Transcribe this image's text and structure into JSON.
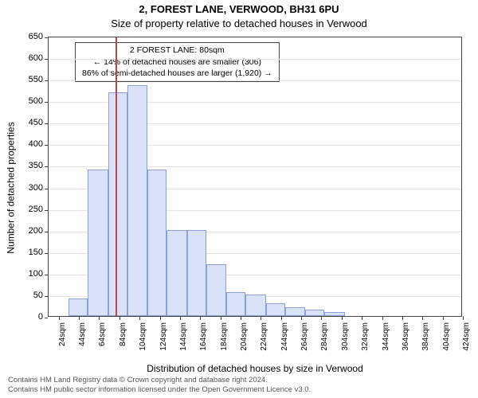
{
  "title": "2, FOREST LANE, VERWOOD, BH31 6PU",
  "subtitle": "Size of property relative to detached houses in Verwood",
  "ylabel": "Number of detached properties",
  "xlabel": "Distribution of detached houses by size in Verwood",
  "footer_line1": "Contains HM Land Registry data © Crown copyright and database right 2024.",
  "footer_line2": "Contains HM public sector information licensed under the Open Government Licence v3.0.",
  "annotation": {
    "l1": "2 FOREST LANE: 80sqm",
    "l2": "← 14% of detached houses are smaller (306)",
    "l3": "86% of semi-detached houses are larger (1,920) →"
  },
  "chart": {
    "type": "histogram",
    "background_color": "#ffffff",
    "grid_color": "#e4e4e4",
    "axis_color": "#444444",
    "bar_fill": "#d9e2f8",
    "bar_border": "#8aa0d6",
    "refline_color": "#c24444",
    "refline_x": 80,
    "title_fontsize": 13,
    "subtitle_fontsize": 13,
    "label_fontsize": 12,
    "tick_fontsize": 11,
    "ylim": [
      0,
      650
    ],
    "yticks": [
      0,
      50,
      100,
      150,
      200,
      250,
      300,
      350,
      400,
      450,
      500,
      550,
      600,
      650
    ],
    "xlim": [
      14,
      424
    ],
    "xtick_step": 20,
    "xtick_start": 24,
    "xtick_suffix": "sqm",
    "bars": [
      {
        "x0": 34,
        "x1": 53,
        "v": 40
      },
      {
        "x0": 53,
        "x1": 73,
        "v": 340
      },
      {
        "x0": 73,
        "x1": 92,
        "v": 518
      },
      {
        "x0": 92,
        "x1": 112,
        "v": 535
      },
      {
        "x0": 112,
        "x1": 131,
        "v": 340
      },
      {
        "x0": 131,
        "x1": 151,
        "v": 200
      },
      {
        "x0": 151,
        "x1": 170,
        "v": 200
      },
      {
        "x0": 170,
        "x1": 190,
        "v": 120
      },
      {
        "x0": 190,
        "x1": 209,
        "v": 55
      },
      {
        "x0": 209,
        "x1": 229,
        "v": 50
      },
      {
        "x0": 229,
        "x1": 248,
        "v": 30
      },
      {
        "x0": 248,
        "x1": 268,
        "v": 20
      },
      {
        "x0": 268,
        "x1": 287,
        "v": 15
      },
      {
        "x0": 287,
        "x1": 307,
        "v": 10
      }
    ]
  }
}
